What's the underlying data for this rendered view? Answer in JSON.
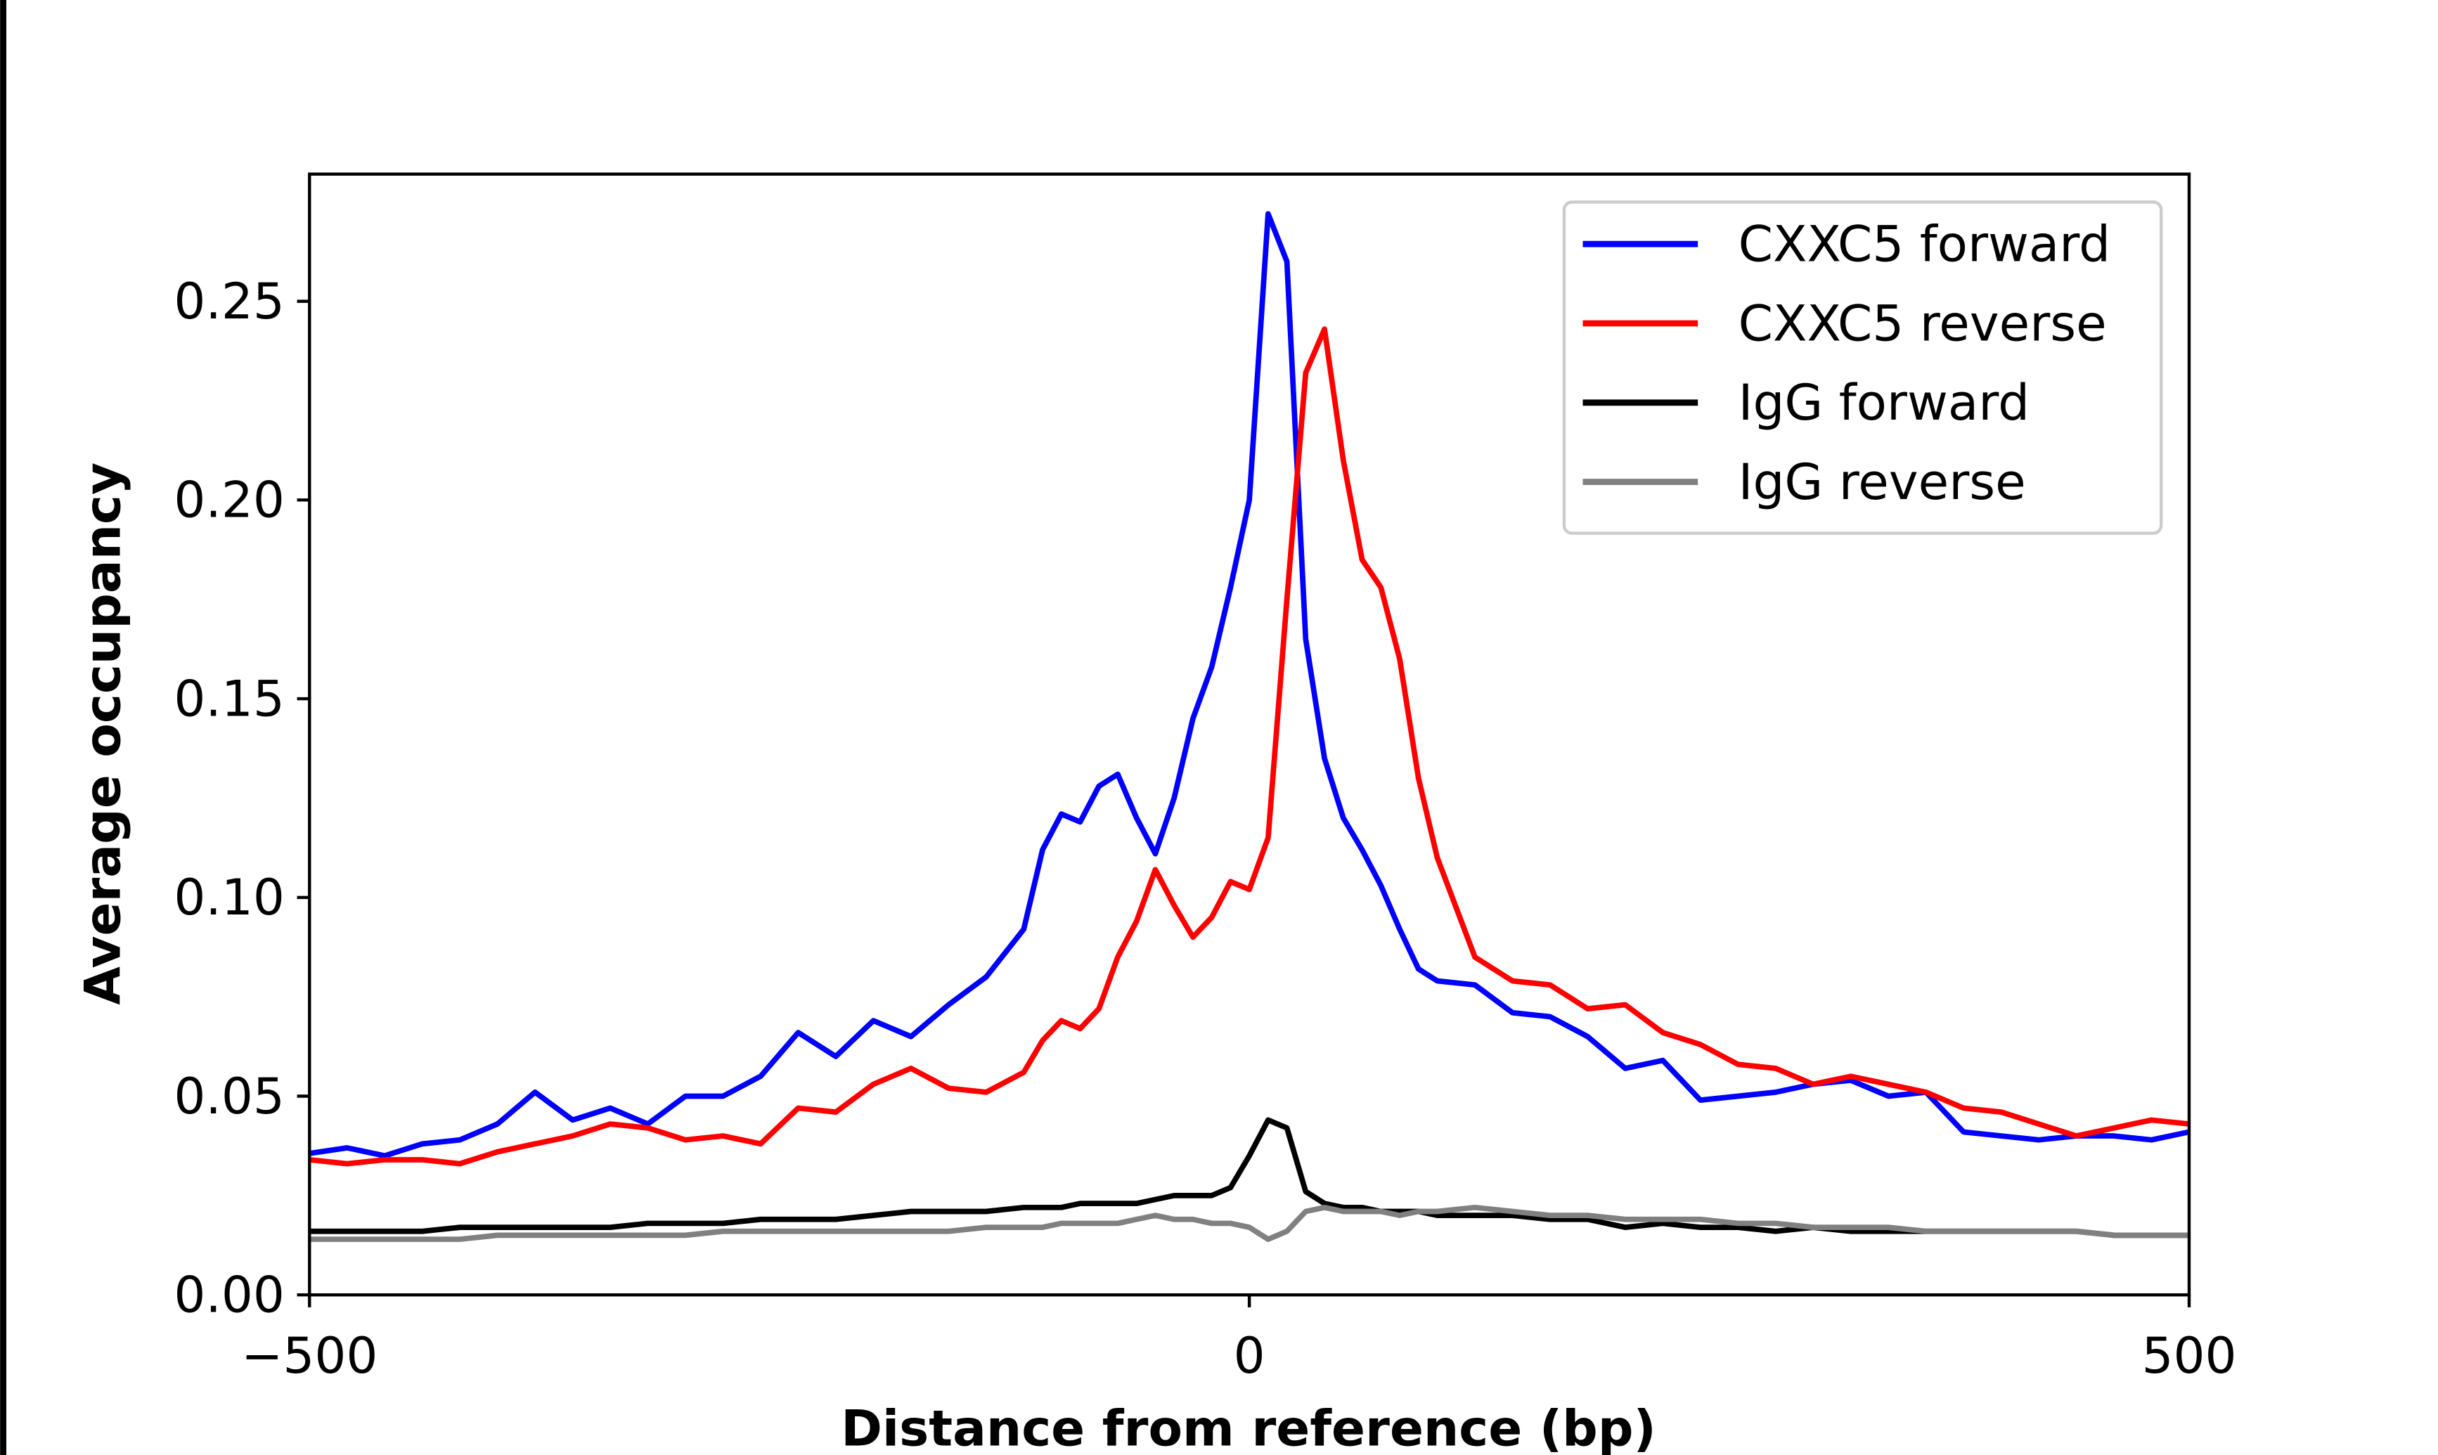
{
  "chart_data": {
    "type": "line",
    "xlabel": "Distance from reference (bp)",
    "ylabel": "Average occupancy",
    "xlim": [
      -500,
      500
    ],
    "ylim": [
      0,
      0.282
    ],
    "xticks": [
      {
        "value": -500,
        "label": "−500"
      },
      0,
      500
    ],
    "yticks": [
      {
        "value": 0,
        "label": "0.00"
      },
      {
        "value": 0.05,
        "label": "0.05"
      },
      {
        "value": 0.1,
        "label": "0.10"
      },
      {
        "value": 0.15,
        "label": "0.15"
      },
      {
        "value": 0.2,
        "label": "0.20"
      },
      {
        "value": 0.25,
        "label": "0.25"
      }
    ],
    "legend": "upper right",
    "x": [
      -500,
      -480,
      -460,
      -440,
      -420,
      -400,
      -380,
      -360,
      -340,
      -320,
      -300,
      -280,
      -260,
      -240,
      -220,
      -200,
      -180,
      -160,
      -140,
      -120,
      -110,
      -100,
      -90,
      -80,
      -70,
      -60,
      -50,
      -40,
      -30,
      -20,
      -10,
      0,
      10,
      20,
      30,
      40,
      50,
      60,
      70,
      80,
      90,
      100,
      120,
      140,
      160,
      180,
      200,
      220,
      240,
      260,
      280,
      300,
      320,
      340,
      360,
      380,
      400,
      420,
      440,
      460,
      480,
      500
    ],
    "series": [
      {
        "name": "CXXC5 forward",
        "color": "#0000ff",
        "values": [
          0.0356,
          0.037,
          0.035,
          0.038,
          0.039,
          0.043,
          0.051,
          0.044,
          0.047,
          0.043,
          0.05,
          0.05,
          0.055,
          0.066,
          0.06,
          0.069,
          0.065,
          0.073,
          0.08,
          0.092,
          0.112,
          0.121,
          0.119,
          0.128,
          0.131,
          0.12,
          0.111,
          0.125,
          0.145,
          0.158,
          0.178,
          0.2,
          0.272,
          0.26,
          0.165,
          0.135,
          0.12,
          0.112,
          0.103,
          0.092,
          0.082,
          0.079,
          0.078,
          0.071,
          0.07,
          0.065,
          0.057,
          0.059,
          0.049,
          0.05,
          0.051,
          0.053,
          0.054,
          0.05,
          0.051,
          0.041,
          0.04,
          0.039,
          0.04,
          0.04,
          0.039,
          0.041
        ]
      },
      {
        "name": "CXXC5 reverse",
        "color": "#ff0000",
        "values": [
          0.034,
          0.033,
          0.034,
          0.034,
          0.033,
          0.036,
          0.038,
          0.04,
          0.043,
          0.042,
          0.039,
          0.04,
          0.038,
          0.047,
          0.046,
          0.053,
          0.057,
          0.052,
          0.051,
          0.056,
          0.064,
          0.069,
          0.067,
          0.072,
          0.085,
          0.094,
          0.107,
          0.098,
          0.09,
          0.095,
          0.104,
          0.102,
          0.115,
          0.175,
          0.232,
          0.243,
          0.21,
          0.185,
          0.178,
          0.16,
          0.13,
          0.11,
          0.085,
          0.079,
          0.078,
          0.072,
          0.073,
          0.066,
          0.063,
          0.058,
          0.057,
          0.053,
          0.055,
          0.053,
          0.051,
          0.047,
          0.046,
          0.043,
          0.04,
          0.042,
          0.044,
          0.043
        ]
      },
      {
        "name": "IgG forward",
        "color": "#000000",
        "values": [
          0.016,
          0.016,
          0.016,
          0.016,
          0.017,
          0.017,
          0.017,
          0.017,
          0.017,
          0.018,
          0.018,
          0.018,
          0.019,
          0.019,
          0.019,
          0.02,
          0.021,
          0.021,
          0.021,
          0.022,
          0.022,
          0.022,
          0.023,
          0.023,
          0.023,
          0.023,
          0.024,
          0.025,
          0.025,
          0.025,
          0.027,
          0.035,
          0.044,
          0.042,
          0.026,
          0.023,
          0.022,
          0.022,
          0.021,
          0.021,
          0.021,
          0.02,
          0.02,
          0.02,
          0.019,
          0.019,
          0.017,
          0.018,
          0.017,
          0.017,
          0.016,
          0.017,
          0.016,
          0.016,
          0.016,
          0.016,
          0.016,
          0.016,
          0.016,
          0.015,
          0.015,
          0.015
        ]
      },
      {
        "name": "IgG reverse",
        "color": "#808080",
        "values": [
          0.014,
          0.014,
          0.014,
          0.014,
          0.014,
          0.015,
          0.015,
          0.015,
          0.015,
          0.015,
          0.015,
          0.016,
          0.016,
          0.016,
          0.016,
          0.016,
          0.016,
          0.016,
          0.017,
          0.017,
          0.017,
          0.018,
          0.018,
          0.018,
          0.018,
          0.019,
          0.02,
          0.019,
          0.019,
          0.018,
          0.018,
          0.017,
          0.014,
          0.016,
          0.021,
          0.022,
          0.021,
          0.021,
          0.021,
          0.02,
          0.021,
          0.021,
          0.022,
          0.021,
          0.02,
          0.02,
          0.019,
          0.019,
          0.019,
          0.018,
          0.018,
          0.017,
          0.017,
          0.017,
          0.016,
          0.016,
          0.016,
          0.016,
          0.016,
          0.015,
          0.015,
          0.015
        ]
      }
    ]
  }
}
